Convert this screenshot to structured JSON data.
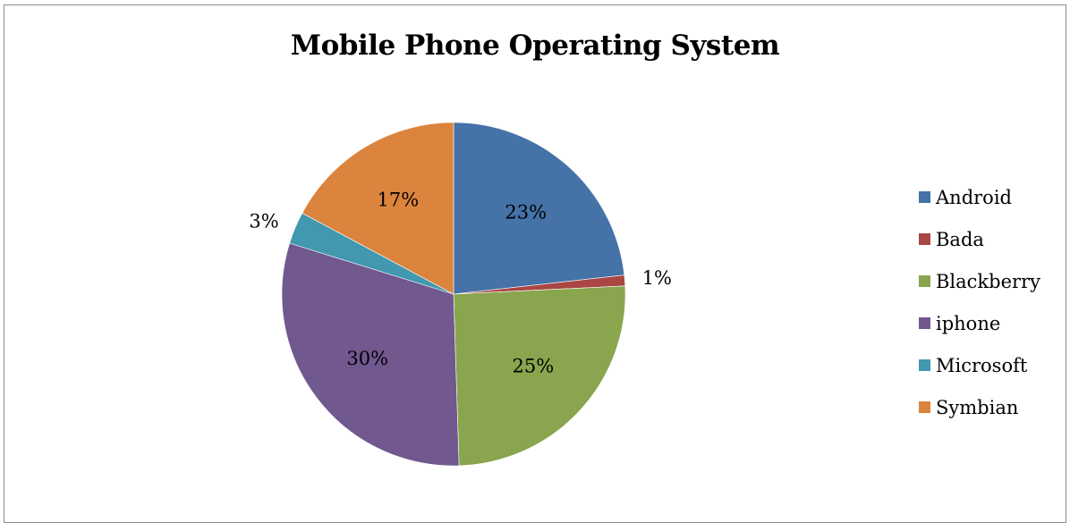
{
  "chart_data": {
    "type": "pie",
    "title": "Mobile Phone Operating System",
    "slices": [
      {
        "name": "Android",
        "value": 23,
        "label": "23%",
        "color": "#4572a7"
      },
      {
        "name": "Bada",
        "value": 1,
        "label": "1%",
        "color": "#aa4643"
      },
      {
        "name": "Blackberry",
        "value": 25,
        "label": "25%",
        "color": "#89a54e"
      },
      {
        "name": "iphone",
        "value": 30,
        "label": "30%",
        "color": "#71588f"
      },
      {
        "name": "Microsoft",
        "value": 3,
        "label": "3%",
        "color": "#4198af"
      },
      {
        "name": "Symbian",
        "value": 17,
        "label": "17%",
        "color": "#db843d"
      }
    ],
    "legend_position": "right"
  }
}
